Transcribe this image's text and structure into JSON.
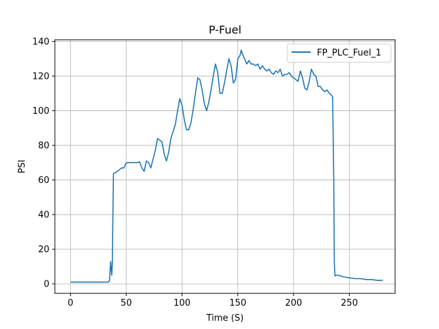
{
  "chart_data": {
    "type": "line",
    "title": "P-Fuel",
    "xlabel": "Time (S)",
    "ylabel": "PSI",
    "xlim": [
      -14,
      291
    ],
    "ylim": [
      -5.5,
      141
    ],
    "xticks": [
      0,
      50,
      100,
      150,
      200,
      250
    ],
    "yticks": [
      0,
      20,
      40,
      60,
      80,
      100,
      120,
      140
    ],
    "grid": true,
    "legend_position": "top-right",
    "series": [
      {
        "name": "FP_PLC_Fuel_1",
        "color": "#1f77b4",
        "x": [
          0,
          10,
          20,
          30,
          34,
          35,
          36,
          37,
          37.5,
          38,
          38.5,
          39,
          40,
          42,
          44,
          46,
          48,
          50,
          52,
          55,
          58,
          60,
          62,
          64,
          66,
          68,
          70,
          72,
          74,
          76,
          78,
          80,
          82,
          84,
          86,
          88,
          90,
          92,
          94,
          96,
          98,
          100,
          102,
          104,
          106,
          108,
          110,
          112,
          114,
          116,
          118,
          120,
          122,
          124,
          126,
          128,
          130,
          132,
          134,
          136,
          138,
          140,
          142,
          144,
          146,
          148,
          150,
          152,
          153,
          154,
          156,
          158,
          160,
          162,
          164,
          166,
          168,
          170,
          172,
          174,
          176,
          178,
          180,
          182,
          184,
          186,
          188,
          190,
          192,
          194,
          196,
          198,
          200,
          202,
          204,
          206,
          208,
          210,
          212,
          214,
          216,
          218,
          220,
          222,
          224,
          226,
          228,
          230,
          232,
          234,
          235,
          236,
          236.5,
          237,
          237.5,
          238,
          240,
          245,
          250,
          255,
          260,
          265,
          270,
          275,
          280
        ],
        "values": [
          1,
          1,
          1,
          1,
          1,
          2,
          13,
          5,
          12,
          40,
          63.5,
          64,
          64,
          65,
          66,
          67,
          67,
          70,
          70,
          70,
          70,
          70,
          70.5,
          67,
          65,
          71,
          70,
          67,
          72,
          77,
          84,
          83,
          82,
          75,
          71,
          76,
          84,
          88,
          92,
          100,
          107,
          103,
          95,
          89,
          89,
          93,
          101,
          110,
          119,
          118,
          112,
          104,
          100,
          105,
          112,
          120,
          127,
          122,
          110,
          110,
          116,
          123,
          130,
          126,
          116,
          118,
          130,
          132,
          135,
          133,
          130,
          127,
          129,
          127,
          127,
          126,
          127,
          124,
          126,
          124,
          123,
          124,
          122,
          121,
          123,
          122,
          124,
          120,
          121,
          121,
          122,
          120,
          119,
          118,
          117,
          123,
          119,
          113,
          112,
          117,
          124,
          121,
          120,
          114,
          114,
          112,
          111,
          112,
          110,
          109,
          108,
          60,
          12,
          5,
          4.5,
          5,
          5,
          4,
          3.5,
          3,
          3,
          2.5,
          2.5,
          2,
          2
        ]
      }
    ]
  }
}
